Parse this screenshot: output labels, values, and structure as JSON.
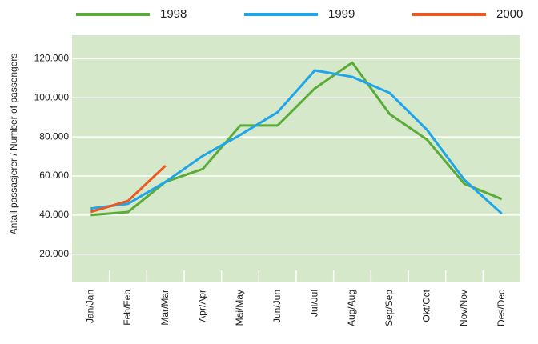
{
  "chart_data": {
    "type": "line",
    "y_label": "Antall passasjerer / Number of passengers",
    "categories": [
      "Jan/Jan",
      "Feb/Feb",
      "Mar/Mar",
      "Apr/Apr",
      "Mai/May",
      "Jun/Jun",
      "Jul/Jul",
      "Aug/Aug",
      "Sep/Sep",
      "Okt/Oct",
      "Nov/Nov",
      "Des/Dec"
    ],
    "series": [
      {
        "name": "1998",
        "color": "#5aab3a",
        "values": [
          40000,
          41600,
          57000,
          63600,
          85800,
          85800,
          104800,
          118000,
          91700,
          78600,
          56000,
          48200
        ]
      },
      {
        "name": "1999",
        "color": "#1ea5ea",
        "values": [
          43400,
          45800,
          57000,
          70300,
          81000,
          92600,
          114000,
          110700,
          102500,
          83600,
          58000,
          40800
        ]
      },
      {
        "name": "2000",
        "color": "#f0561e",
        "values": [
          41600,
          47300,
          65300,
          null,
          null,
          null,
          null,
          null,
          null,
          null,
          null,
          null
        ]
      }
    ],
    "ylim": [
      6000,
      132000
    ],
    "yticks": [
      {
        "value": 20000,
        "label": "20.000"
      },
      {
        "value": 40000,
        "label": "40.000"
      },
      {
        "value": 60000,
        "label": "60.000"
      },
      {
        "value": 80000,
        "label": "80.000"
      },
      {
        "value": 100000,
        "label": "100.000"
      },
      {
        "value": 120000,
        "label": "120.000"
      }
    ],
    "grid": true,
    "background": "#d5e8c9"
  }
}
